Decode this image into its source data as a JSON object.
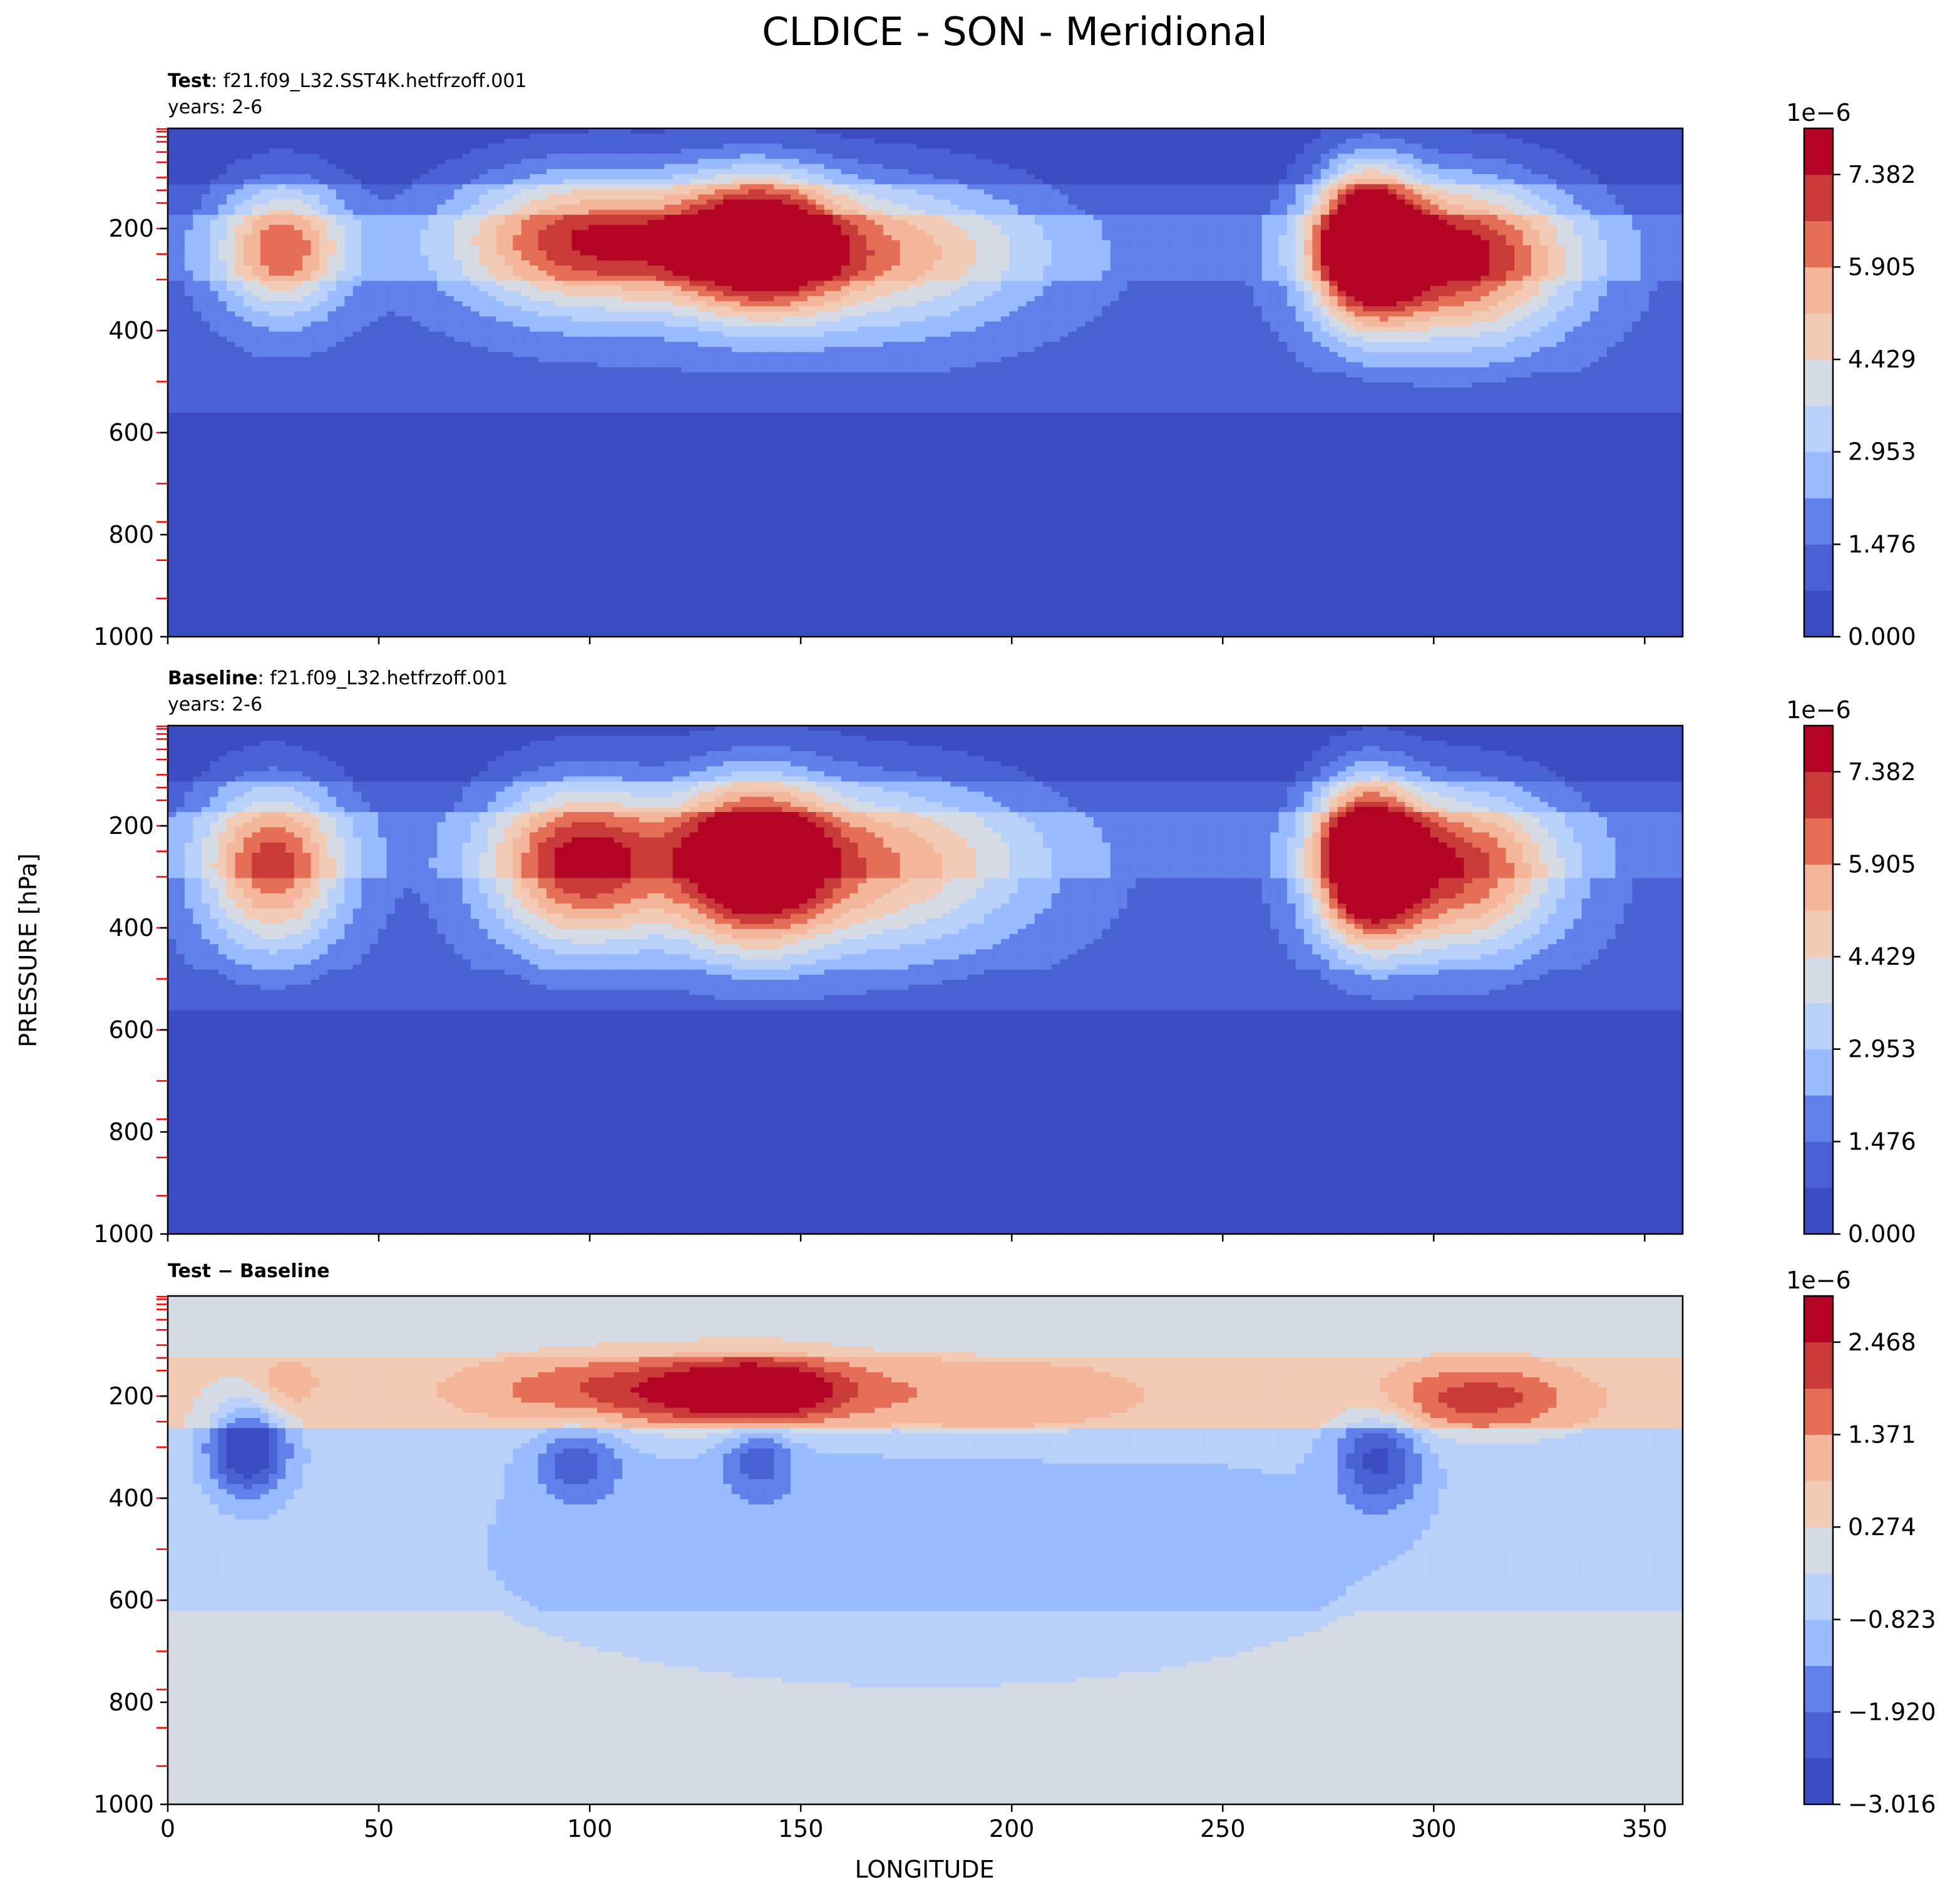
{
  "figure": {
    "title": "CLDICE - SON - Meridional",
    "xlabel": "LONGITUDE",
    "ylabel": "PRESSURE [hPa]"
  },
  "colors": {
    "coolwarm": [
      "#3b4cc0",
      "#4961d2",
      "#6180e9",
      "#7b9ff9",
      "#9abbff",
      "#b9d0f9",
      "#d5dbe5",
      "#f2cbb7",
      "#f5b79c",
      "#f29072",
      "#e46e56",
      "#c93b38",
      "#b40426"
    ],
    "level_marker": "#ff0000",
    "frame": "#000000"
  },
  "chart_data": [
    {
      "type": "contourf",
      "panel": "test",
      "title_bold": "Test",
      "title_rest": ": f21.f09_L32.SST4K.hetfrzoff.001",
      "subtitle": "years: 2-6",
      "xlim": [
        0,
        359
      ],
      "ylim": [
        1000,
        3.6
      ],
      "yticks": [
        200,
        400,
        600,
        800,
        1000
      ],
      "xticks": [
        0,
        50,
        100,
        150,
        200,
        250,
        300,
        350
      ],
      "colorbar": {
        "exponent": "1e−6",
        "levels": [
          0.0,
          0.738,
          1.476,
          2.215,
          2.953,
          3.691,
          4.429,
          5.167,
          5.905,
          6.643,
          7.382,
          8.12
        ],
        "tick_labels": [
          "0.000",
          "1.476",
          "2.953",
          "4.429",
          "5.905",
          "7.382"
        ],
        "tick_values": [
          0.0,
          1.476,
          2.953,
          4.429,
          5.905,
          7.382
        ]
      },
      "cloud_features": [
        {
          "lon": 27,
          "p": 240,
          "peak": 4.9,
          "lon_width": 15,
          "p_width": 130
        },
        {
          "lon": 100,
          "p": 225,
          "peak": 5.6,
          "lon_width": 32,
          "p_width": 140
        },
        {
          "lon": 140,
          "p": 225,
          "peak": 6.2,
          "lon_width": 18,
          "p_width": 130
        },
        {
          "lon": 165,
          "p": 250,
          "peak": 4.2,
          "lon_width": 40,
          "p_width": 150
        },
        {
          "lon": 284,
          "p": 225,
          "peak": 8.1,
          "lon_width": 12,
          "p_width": 140
        },
        {
          "lon": 305,
          "p": 260,
          "peak": 6.3,
          "lon_width": 28,
          "p_width": 160
        }
      ]
    },
    {
      "type": "contourf",
      "panel": "baseline",
      "title_bold": "Baseline",
      "title_rest": ": f21.f09_L32.hetfrzoff.001",
      "subtitle": "years: 2-6",
      "xlim": [
        0,
        359
      ],
      "ylim": [
        1000,
        3.6
      ],
      "yticks": [
        200,
        400,
        600,
        800,
        1000
      ],
      "xticks": [
        0,
        50,
        100,
        150,
        200,
        250,
        300,
        350
      ],
      "colorbar": {
        "exponent": "1e−6",
        "levels": [
          0.0,
          0.738,
          1.476,
          2.215,
          2.953,
          3.691,
          4.429,
          5.167,
          5.905,
          6.643,
          7.382,
          8.12
        ],
        "tick_labels": [
          "0.000",
          "1.476",
          "2.953",
          "4.429",
          "5.905",
          "7.382"
        ],
        "tick_values": [
          0.0,
          1.476,
          2.953,
          4.429,
          5.905,
          7.382
        ]
      },
      "cloud_features": [
        {
          "lon": 25,
          "p": 280,
          "peak": 5.4,
          "lon_width": 17,
          "p_width": 160
        },
        {
          "lon": 98,
          "p": 275,
          "peak": 6.1,
          "lon_width": 22,
          "p_width": 160
        },
        {
          "lon": 138,
          "p": 270,
          "peak": 6.3,
          "lon_width": 18,
          "p_width": 160
        },
        {
          "lon": 165,
          "p": 280,
          "peak": 4.3,
          "lon_width": 40,
          "p_width": 170
        },
        {
          "lon": 284,
          "p": 265,
          "peak": 8.1,
          "lon_width": 12,
          "p_width": 150
        },
        {
          "lon": 305,
          "p": 290,
          "peak": 5.6,
          "lon_width": 25,
          "p_width": 160
        }
      ]
    },
    {
      "type": "contourf",
      "panel": "difference",
      "title_bold": "Test − Baseline",
      "title_rest": "",
      "subtitle": "",
      "xlim": [
        0,
        359
      ],
      "ylim": [
        1000,
        3.6
      ],
      "yticks": [
        200,
        400,
        600,
        800,
        1000
      ],
      "xticks": [
        0,
        50,
        100,
        150,
        200,
        250,
        300,
        350
      ],
      "xtick_labels": [
        "0",
        "50",
        "100",
        "150",
        "200",
        "250",
        "300",
        "350"
      ],
      "colorbar": {
        "exponent": "1e−6",
        "levels": [
          -3.016,
          -2.468,
          -1.92,
          -1.371,
          -0.823,
          -0.274,
          0.274,
          0.823,
          1.371,
          1.92,
          2.468,
          3.016
        ],
        "tick_labels": [
          "−3.016",
          "−1.920",
          "−0.823",
          "0.274",
          "1.371",
          "2.468"
        ],
        "tick_values": [
          -3.016,
          -1.92,
          -0.823,
          0.274,
          1.371,
          2.468
        ]
      },
      "cloud_features": [
        {
          "lon": 120,
          "p": 190,
          "peak": 2.1,
          "lon_width": 45,
          "p_width": 70
        },
        {
          "lon": 140,
          "p": 190,
          "peak": 2.2,
          "lon_width": 18,
          "p_width": 60
        },
        {
          "lon": 200,
          "p": 210,
          "peak": 0.9,
          "lon_width": 45,
          "p_width": 90
        },
        {
          "lon": 310,
          "p": 205,
          "peak": 1.8,
          "lon_width": 25,
          "p_width": 70
        },
        {
          "lon": 28,
          "p": 180,
          "peak": 0.8,
          "lon_width": 8,
          "p_width": 60
        },
        {
          "lon": 19,
          "p": 300,
          "peak": -2.9,
          "lon_width": 9,
          "p_width": 90
        },
        {
          "lon": 97,
          "p": 330,
          "peak": -1.5,
          "lon_width": 10,
          "p_width": 80
        },
        {
          "lon": 140,
          "p": 320,
          "peak": -1.4,
          "lon_width": 8,
          "p_width": 70
        },
        {
          "lon": 287,
          "p": 320,
          "peak": -2.0,
          "lon_width": 10,
          "p_width": 100
        },
        {
          "lon": 180,
          "p": 500,
          "peak": -0.8,
          "lon_width": 110,
          "p_width": 260
        }
      ]
    }
  ]
}
